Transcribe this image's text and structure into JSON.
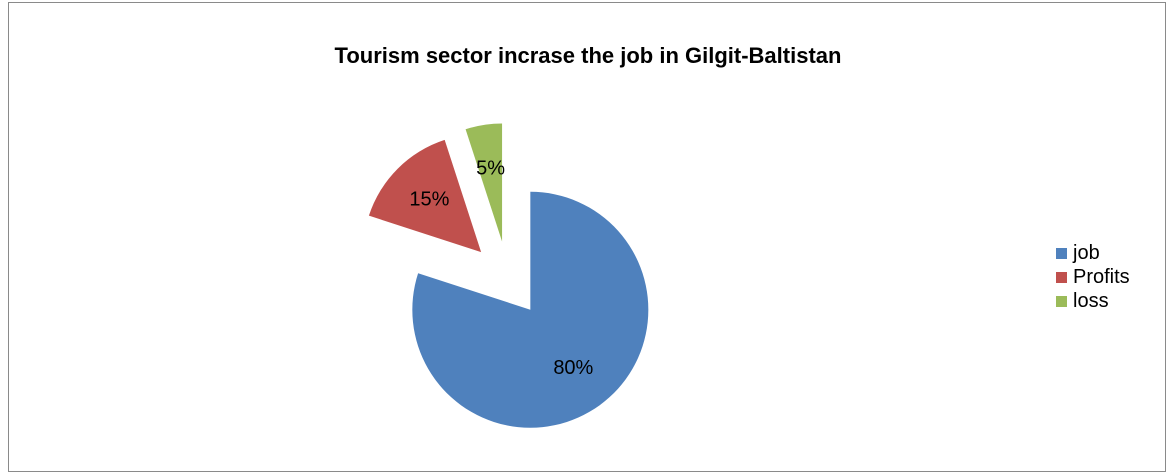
{
  "chart_data": {
    "type": "pie",
    "title": "Tourism sector incrase the job in Gilgit-Baltistan",
    "categories": [
      "job",
      "Profits",
      "loss"
    ],
    "values": [
      80,
      15,
      5
    ],
    "data_labels": [
      "80%",
      "15%",
      "5%"
    ],
    "colors": [
      "#4F81BD",
      "#C0504D",
      "#9BBB59"
    ],
    "exploded": true,
    "legend_position": "right"
  }
}
